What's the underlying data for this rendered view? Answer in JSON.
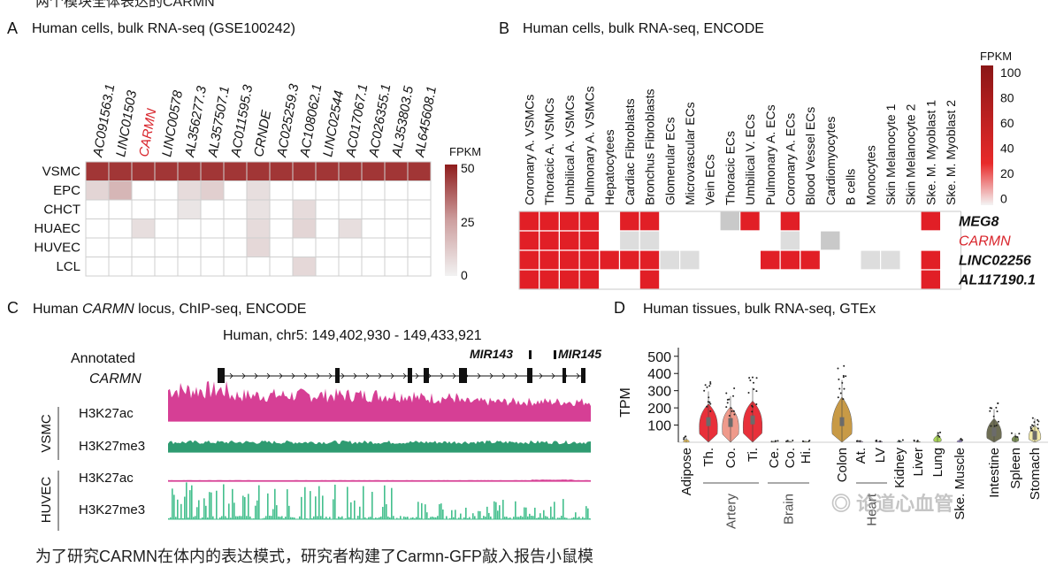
{
  "top_caption": "两个模块全体表达的CARMN",
  "panelA": {
    "letter": "A",
    "title": "Human cells, bulk RNA-seq (GSE100242)",
    "genes": [
      "AC091563.1",
      "LINC01503",
      "CARMN",
      "LINC00578",
      "AL356277.3",
      "AL357507.1",
      "AC011595.3",
      "CRNDE",
      "AC025259.3",
      "AC108062.1",
      "LINC02544",
      "AC017067.1",
      "AC026355.1",
      "AL353803.5",
      "AL645608.1"
    ],
    "highlight_gene": "CARMN",
    "cells": [
      "VSMC",
      "EPC",
      "CHCT",
      "HUAEC",
      "HUVEC",
      "LCL"
    ],
    "values": [
      [
        45,
        45,
        45,
        45,
        45,
        45,
        45,
        45,
        45,
        45,
        45,
        45,
        45,
        45,
        45
      ],
      [
        8,
        18,
        0,
        0,
        6,
        10,
        0,
        5,
        0,
        0,
        0,
        0,
        0,
        0,
        0
      ],
      [
        0,
        0,
        0,
        0,
        3,
        0,
        0,
        4,
        0,
        6,
        0,
        0,
        0,
        0,
        0
      ],
      [
        0,
        0,
        5,
        0,
        0,
        0,
        0,
        6,
        0,
        8,
        0,
        5,
        0,
        0,
        0
      ],
      [
        0,
        0,
        0,
        0,
        0,
        0,
        0,
        7,
        0,
        0,
        0,
        0,
        0,
        0,
        0
      ],
      [
        0,
        0,
        0,
        0,
        0,
        0,
        0,
        0,
        0,
        7,
        0,
        0,
        0,
        0,
        0
      ]
    ],
    "legend": {
      "title": "FPKM",
      "ticks": [
        "50",
        "25",
        "0"
      ]
    }
  },
  "panelB": {
    "letter": "B",
    "title": "Human cells, bulk RNA-seq, ENCODE",
    "cells": [
      "Coronary A. VSMCs",
      "Thoracic A. VSMCs",
      "Umbilical A. VSMCs",
      "Pulmonary A. VSMCs",
      "Hepatocytees",
      "Cardiac Fibroblasts",
      "Bronchus Fibroblasts",
      "Glomerular ECs",
      "Microvascular ECs",
      "Vein ECs",
      "Thoracic ECs",
      "Umbilical V. ECs",
      "Pulmonary A. ECs",
      "Coronary A. ECs",
      "Blood Vessel ECs",
      "Cardiomyocytes",
      "B cells",
      "Monocytes",
      "Skin Melanocyte 1",
      "Skin Melanocyte 2",
      "Ske. M. Myoblast 1",
      "Ske. M. Myoblast 2"
    ],
    "genes": [
      "MEG8",
      "CARMN",
      "LINC02256",
      "AL117190.1"
    ],
    "highlight_gene": "CARMN",
    "values": [
      [
        90,
        80,
        70,
        85,
        0,
        95,
        95,
        0,
        0,
        0,
        20,
        95,
        0,
        95,
        0,
        0,
        0,
        0,
        0,
        0,
        95,
        0
      ],
      [
        95,
        95,
        95,
        95,
        0,
        10,
        15,
        0,
        0,
        0,
        0,
        0,
        0,
        10,
        0,
        20,
        0,
        0,
        0,
        0,
        0,
        0
      ],
      [
        95,
        95,
        95,
        95,
        95,
        95,
        95,
        10,
        10,
        0,
        0,
        0,
        95,
        95,
        95,
        0,
        0,
        15,
        15,
        0,
        95,
        0
      ],
      [
        95,
        95,
        95,
        95,
        0,
        0,
        95,
        0,
        0,
        0,
        0,
        0,
        0,
        0,
        0,
        0,
        0,
        0,
        0,
        0,
        95,
        0
      ]
    ],
    "legend": {
      "title": "FPKM",
      "ticks": [
        "100",
        "80",
        "60",
        "40",
        "20",
        "0"
      ]
    }
  },
  "panelC": {
    "letter": "C",
    "title_prefix": "Human ",
    "title_gene": "CARMN",
    "title_suffix": " locus, ChIP-seq, ENCODE",
    "coords": "Human, chr5: 149,402,930 - 149,433,921",
    "annot_label": "Annotated",
    "annot_gene": "CARMN",
    "mir1": "MIR143",
    "mir2": "MIR145",
    "groups": [
      {
        "name": "VSMC",
        "tracks": [
          {
            "mark": "H3K27ac",
            "color": "#d63f95"
          },
          {
            "mark": "H3K27me3",
            "color": "#2e9b71"
          }
        ]
      },
      {
        "name": "HUVEC",
        "tracks": [
          {
            "mark": "H3K27ac",
            "color": "#d63f95"
          },
          {
            "mark": "H3K27me3",
            "color": "#43bf8d"
          }
        ]
      }
    ]
  },
  "panelD": {
    "letter": "D",
    "title": "Human tissues, bulk RNA-seq, GTEx",
    "ylabel": "TPM",
    "yticks": [
      500,
      400,
      300,
      200,
      100
    ],
    "ylim": [
      0,
      540
    ],
    "tissues": [
      {
        "label": "Adipose",
        "median": 5,
        "spread": 10,
        "color": "#f0c85c"
      },
      {
        "label": "Th.",
        "median": 120,
        "spread": 80,
        "color": "#e8303a"
      },
      {
        "label": "Co.",
        "median": 115,
        "spread": 70,
        "color": "#ef9a8b"
      },
      {
        "label": "Ti.",
        "median": 130,
        "spread": 85,
        "color": "#e8303a"
      },
      {
        "label": "Ce.",
        "median": 2,
        "spread": 3,
        "color": "#c9c9a8"
      },
      {
        "label": "Co.",
        "median": 2,
        "spread": 3,
        "color": "#c9c9a8"
      },
      {
        "label": "Hi.",
        "median": 2,
        "spread": 3,
        "color": "#e0e9a0"
      },
      {
        "label": "Colon",
        "median": 120,
        "spread": 110,
        "color": "#c89a46"
      },
      {
        "label": "At.",
        "median": 3,
        "spread": 4,
        "color": "#b79ad1"
      },
      {
        "label": "LV",
        "median": 3,
        "spread": 4,
        "color": "#9f7fc2"
      },
      {
        "label": "Kidney",
        "median": 3,
        "spread": 4,
        "color": "#7cc5c5"
      },
      {
        "label": "Liver",
        "median": 2,
        "spread": 3,
        "color": "#b8c77a"
      },
      {
        "label": "Lung",
        "median": 15,
        "spread": 20,
        "color": "#a8d456"
      },
      {
        "label": "Ske. Muscle",
        "median": 5,
        "spread": 6,
        "color": "#9a86d4"
      },
      {
        "label": "Intestine",
        "median": 60,
        "spread": 60,
        "color": "#6e6e54"
      },
      {
        "label": "Spleen",
        "median": 20,
        "spread": 15,
        "color": "#7b8e55"
      },
      {
        "label": "Stomach",
        "median": 40,
        "spread": 45,
        "color": "#f0e8a8"
      }
    ],
    "groups": [
      {
        "label": "Artery"
      },
      {
        "label": "Brain"
      },
      {
        "label": "Heart"
      }
    ]
  },
  "watermark": "论道心血管",
  "bottom_caption": "为了研究CARMN在体内的表达模式，研究者构建了Carmn-GFP敲入报告小鼠模",
  "colors": {
    "heat_dark": "#8b1a1a",
    "heat_red": "#e11f26",
    "grey": "#cfcfcf"
  }
}
